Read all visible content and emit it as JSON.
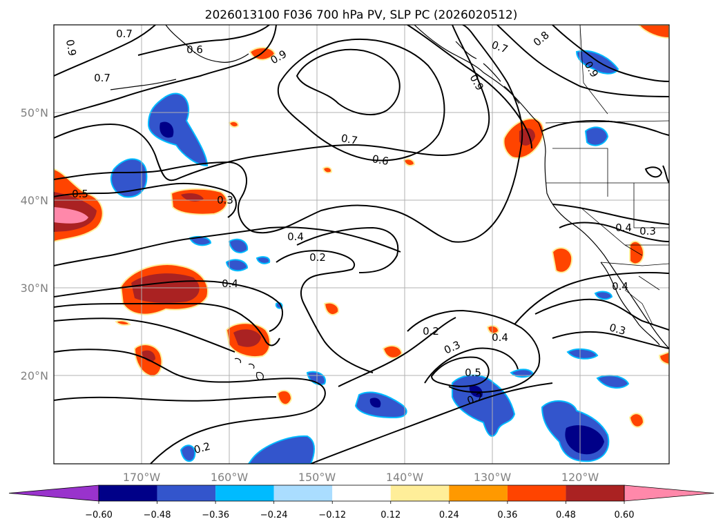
{
  "title": "2026013100 F036 700 hPa PV, SLP PC (2026020512)",
  "lat_labels": [
    {
      "text": "50°N",
      "lat": 50
    },
    {
      "text": "40°N",
      "lat": 40
    },
    {
      "text": "30°N",
      "lat": 30
    },
    {
      "text": "20°N",
      "lat": 20
    }
  ],
  "lon_labels": [
    {
      "text": "170°W",
      "lon": -170
    },
    {
      "text": "160°W",
      "lon": -160
    },
    {
      "text": "150°W",
      "lon": -150
    },
    {
      "text": "140°W",
      "lon": -140
    },
    {
      "text": "130°W",
      "lon": -130
    },
    {
      "text": "120°W",
      "lon": -120
    }
  ],
  "colorbar": {
    "colors": [
      "#9933cc",
      "#000088",
      "#3355cc",
      "#00bbff",
      "#aaddff",
      "#ffffff",
      "#ffee99",
      "#ff9900",
      "#ff4400",
      "#aa2222",
      "#ff88aa"
    ],
    "tick_labels": [
      "−0.60",
      "−0.48",
      "−0.36",
      "−0.24",
      "−0.12",
      "0.12",
      "0.24",
      "0.36",
      "0.48",
      "0.60"
    ]
  },
  "contour_labels": [
    {
      "text": "0.7"
    },
    {
      "text": "0.6"
    },
    {
      "text": "0.9"
    },
    {
      "text": "0.7"
    },
    {
      "text": "0.5"
    },
    {
      "text": "0.3"
    },
    {
      "text": "0.7"
    },
    {
      "text": "0.6"
    },
    {
      "text": "0.7"
    },
    {
      "text": "0.8"
    },
    {
      "text": "0.9"
    },
    {
      "text": "0.9"
    },
    {
      "text": "0.9"
    },
    {
      "text": "0.4"
    },
    {
      "text": "0.2"
    },
    {
      "text": "0.4"
    },
    {
      "text": "0.4"
    },
    {
      "text": "0.3"
    },
    {
      "text": "0.4"
    },
    {
      "text": "0.3"
    },
    {
      "text": "0.2"
    },
    {
      "text": "0.3"
    },
    {
      "text": "0.4"
    },
    {
      "text": "0.5"
    },
    {
      "text": "0.2"
    },
    {
      "text": "0.2"
    }
  ]
}
